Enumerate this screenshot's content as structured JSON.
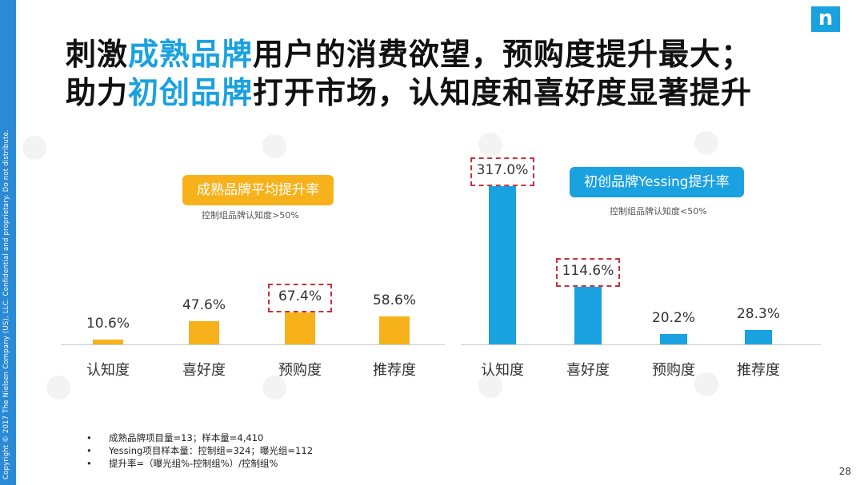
{
  "sidebar_text": "Copyright © 2017 The Nielsen Company (US), LLC. Confidential and proprietary. Do not distribute.",
  "logo": "n",
  "title": {
    "line1_a": "刺激",
    "line1_hl": "成熟品牌",
    "line1_b": "用户的消费欲望，预购度提升最大；",
    "line2_a": "助力",
    "line2_hl": "初创品牌",
    "line2_b": "打开市场，认知度和喜好度显著提升"
  },
  "chart_data": [
    {
      "type": "bar",
      "title": "成熟品牌平均提升率",
      "subtitle": "控制组品牌认知度>50%",
      "categories": [
        "认知度",
        "喜好度",
        "预购度",
        "推荐度"
      ],
      "values": [
        10.6,
        47.6,
        67.4,
        58.6
      ],
      "labels": [
        "10.6%",
        "47.6%",
        "67.4%",
        "58.6%"
      ],
      "highlighted": [
        "预购度"
      ],
      "color": "#f7b21b"
    },
    {
      "type": "bar",
      "title": "初创品牌Yessing提升率",
      "subtitle": "控制组品牌认知度<50%",
      "categories": [
        "认知度",
        "喜好度",
        "预购度",
        "推荐度"
      ],
      "values": [
        317.0,
        114.6,
        20.2,
        28.3
      ],
      "labels": [
        "317.0%",
        "114.6%",
        "20.2%",
        "28.3%"
      ],
      "highlighted": [
        "认知度",
        "喜好度"
      ],
      "color": "#1aa1e0"
    }
  ],
  "notes": [
    "成熟品牌项目量=13；样本量=4,410",
    "Yessing项目样本量：控制组=324；曝光组=112",
    "提升率=（曝光组%-控制组%）/控制组%"
  ],
  "bullet": "•",
  "page_number": "28"
}
